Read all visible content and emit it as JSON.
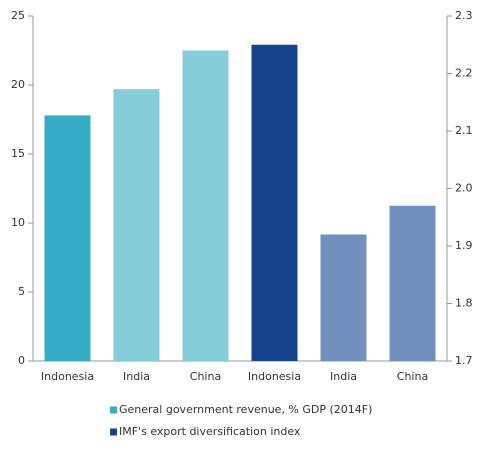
{
  "chart_data": {
    "type": "bar",
    "categories": [
      "Indonesia",
      "India",
      "China",
      "Indonesia",
      "India",
      "China"
    ],
    "series": [
      {
        "name": "General government revenue, % GDP (2014F)",
        "color": "#35adc6",
        "colors": [
          "#35adc6",
          "#85cdd8",
          "#85cdd8",
          null,
          null,
          null
        ],
        "values": [
          17.8,
          19.7,
          22.5,
          null,
          null,
          null
        ]
      },
      {
        "name": "IMF's export diversification index",
        "color": "#17428c",
        "axis": "y2",
        "colors": [
          null,
          null,
          null,
          "#17428c",
          "#7190be",
          "#7190be"
        ],
        "values": [
          null,
          null,
          null,
          2.25,
          1.92,
          1.97
        ]
      }
    ],
    "ylim": [
      0,
      25
    ],
    "yticks": [
      0,
      5,
      10,
      15,
      20,
      25
    ],
    "y2lim": [
      1.7,
      2.3
    ],
    "y2ticks": [
      1.7,
      1.8,
      1.9,
      {
        "value": 2.0,
        "label": "2.0"
      },
      2.1,
      2.2,
      2.3
    ],
    "grid": false
  }
}
